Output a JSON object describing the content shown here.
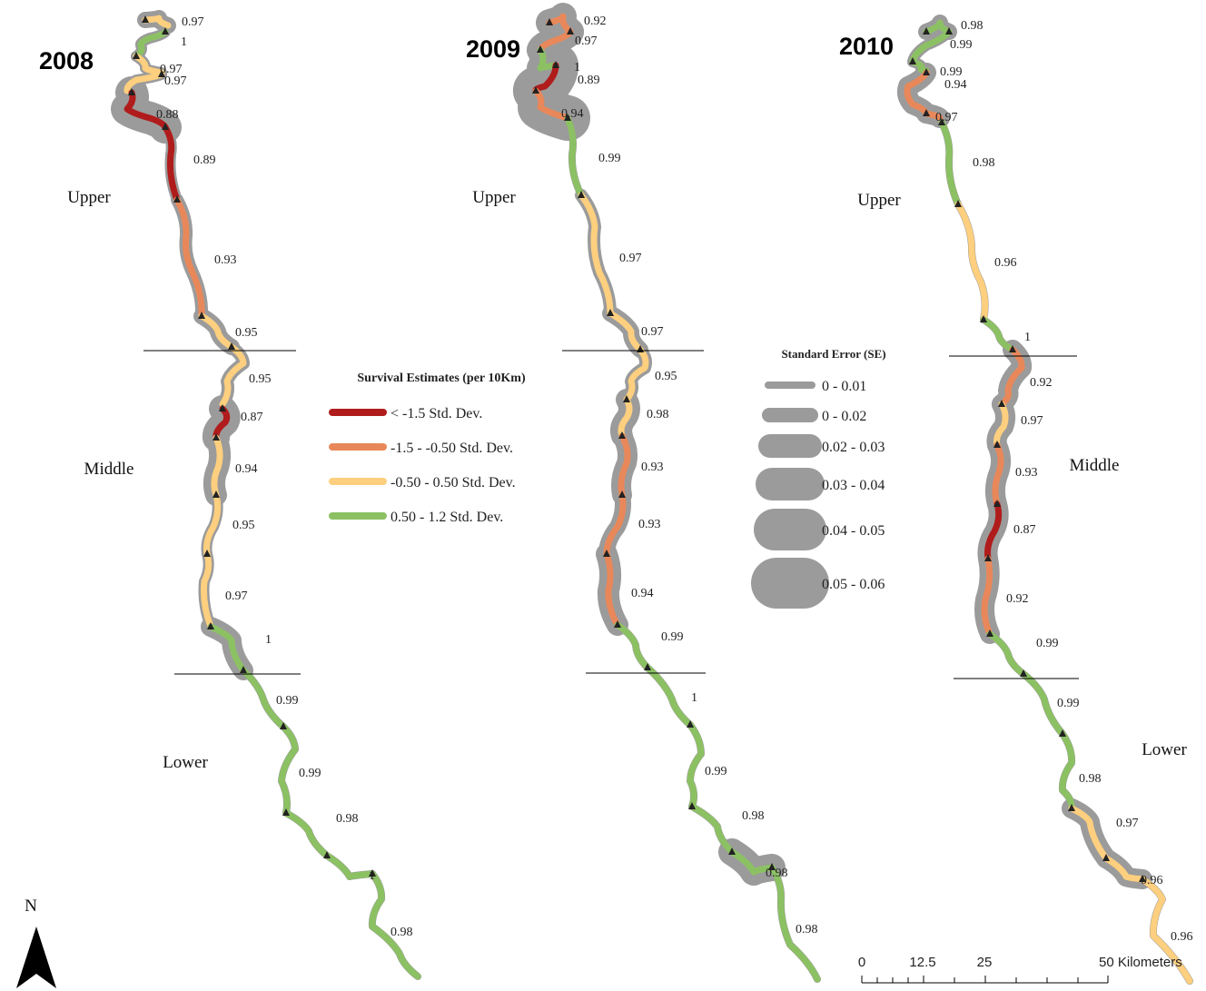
{
  "panels": [
    {
      "year": "2008",
      "sections": [
        "Upper",
        "Middle",
        "Lower"
      ],
      "estimates": [
        "0.97",
        "1",
        "0.97",
        "0.97",
        "0.88",
        "0.89",
        "0.93",
        "0.95",
        "0.95",
        "0.87",
        "0.94",
        "0.95",
        "0.97",
        "1",
        "0.99",
        "0.99",
        "0.98",
        "1",
        "0.98"
      ]
    },
    {
      "year": "2009",
      "sections": [
        "Upper"
      ],
      "estimates": [
        "0.92",
        "0.97",
        "1",
        "0.89",
        "0.94",
        "0.99",
        "0.97",
        "0.97",
        "0.95",
        "0.98",
        "0.93",
        "0.93",
        "0.94",
        "0.99",
        "1",
        "0.99",
        "0.98",
        "0.98",
        "0.98"
      ]
    },
    {
      "year": "2010",
      "sections": [
        "Upper",
        "Middle",
        "Lower"
      ],
      "estimates": [
        "0.98",
        "0.99",
        "0.99",
        "0.94",
        "0.97",
        "0.98",
        "0.96",
        "1",
        "0.92",
        "0.97",
        "0.93",
        "0.87",
        "0.92",
        "0.99",
        "0.99",
        "0.98",
        "0.97",
        "0.96",
        "0.96"
      ]
    }
  ],
  "survival_legend": {
    "title": "Survival Estimates (per 10Km)",
    "items": [
      {
        "label": "< -1.5 Std. Dev.",
        "color": "#b01c1c"
      },
      {
        "label": "-1.5 - -0.50 Std. Dev.",
        "color": "#e8885a"
      },
      {
        "label": "-0.50 - 0.50 Std. Dev.",
        "color": "#fdcf7e"
      },
      {
        "label": "0.50 - 1.2 Std. Dev.",
        "color": "#8cc163"
      }
    ]
  },
  "se_legend": {
    "title": "Standard Error (SE)",
    "items": [
      "0 - 0.01",
      "0 - 0.02",
      "0.02 - 0.03",
      "0.03 - 0.04",
      "0.04 - 0.05",
      "0.05 - 0.06"
    ]
  },
  "north": "N",
  "scale_bar": [
    "0",
    "12.5",
    "25",
    "50 Kilometers"
  ]
}
